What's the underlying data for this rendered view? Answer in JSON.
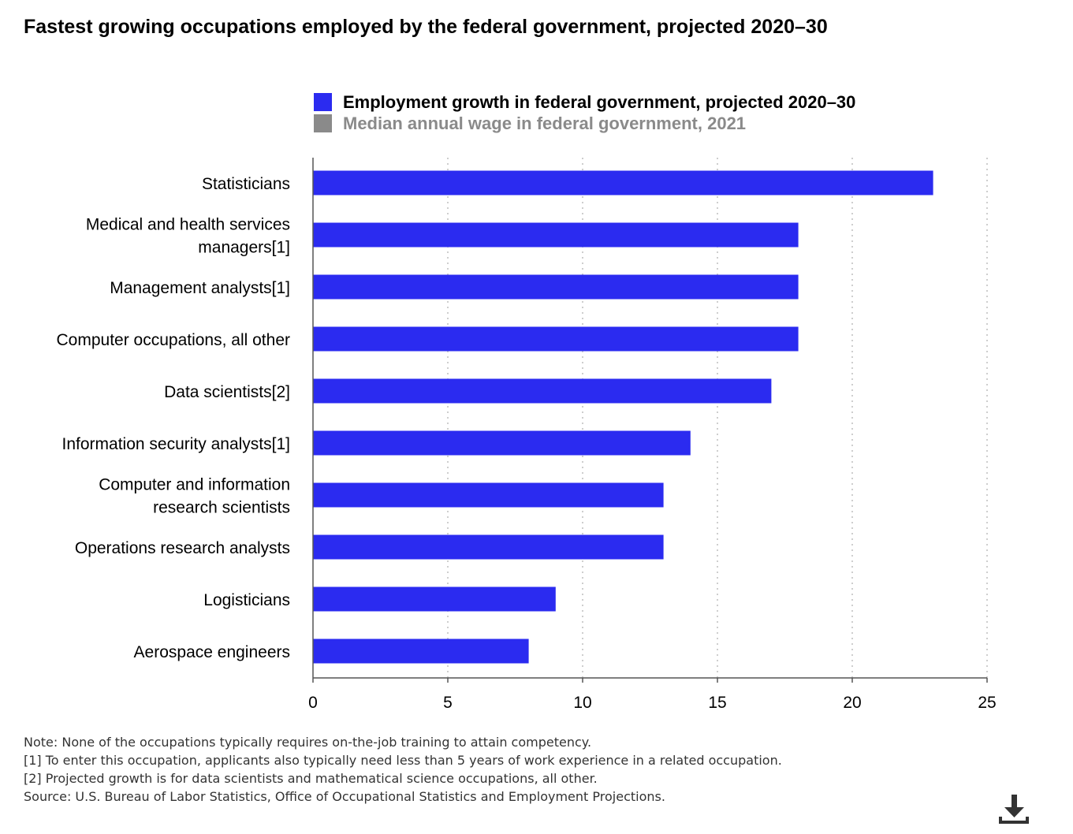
{
  "title": "Fastest growing occupations employed by the federal government, projected 2020–30",
  "legend": [
    {
      "label": "Employment growth in federal government, projected 2020–30",
      "color": "#2b2bf0",
      "active": true
    },
    {
      "label": "Median annual wage in federal government, 2021",
      "color": "#8a8a8a",
      "active": false
    }
  ],
  "chart_data": {
    "type": "bar",
    "orientation": "horizontal",
    "categories": [
      [
        "Statisticians"
      ],
      [
        "Medical and health services",
        "managers[1]"
      ],
      [
        "Management analysts[1]"
      ],
      [
        "Computer occupations, all other"
      ],
      [
        "Data scientists[2]"
      ],
      [
        "Information security analysts[1]"
      ],
      [
        "Computer and information",
        "research scientists"
      ],
      [
        "Operations research analysts"
      ],
      [
        "Logisticians"
      ],
      [
        "Aerospace engineers"
      ]
    ],
    "series": [
      {
        "name": "Employment growth in federal government, projected 2020–30",
        "color": "#2b2bf0",
        "values": [
          23,
          18,
          18,
          18,
          17,
          14,
          13,
          13,
          9,
          8
        ]
      }
    ],
    "xlim": [
      0,
      25
    ],
    "xticks": [
      0,
      5,
      10,
      15,
      20,
      25
    ],
    "grid": "vertical-dotted",
    "legend_position": "top"
  },
  "notes": [
    "Note: None of the occupations typically requires on-the-job training to attain competency.",
    "[1] To enter this occupation, applicants also typically need less than 5 years of work experience in a related occupation.",
    "[2] Projected growth is for data scientists and mathematical science occupations, all other.",
    "Source: U.S. Bureau of Labor Statistics, Office of Occupational Statistics and Employment Projections."
  ],
  "download_icon": "download-icon"
}
